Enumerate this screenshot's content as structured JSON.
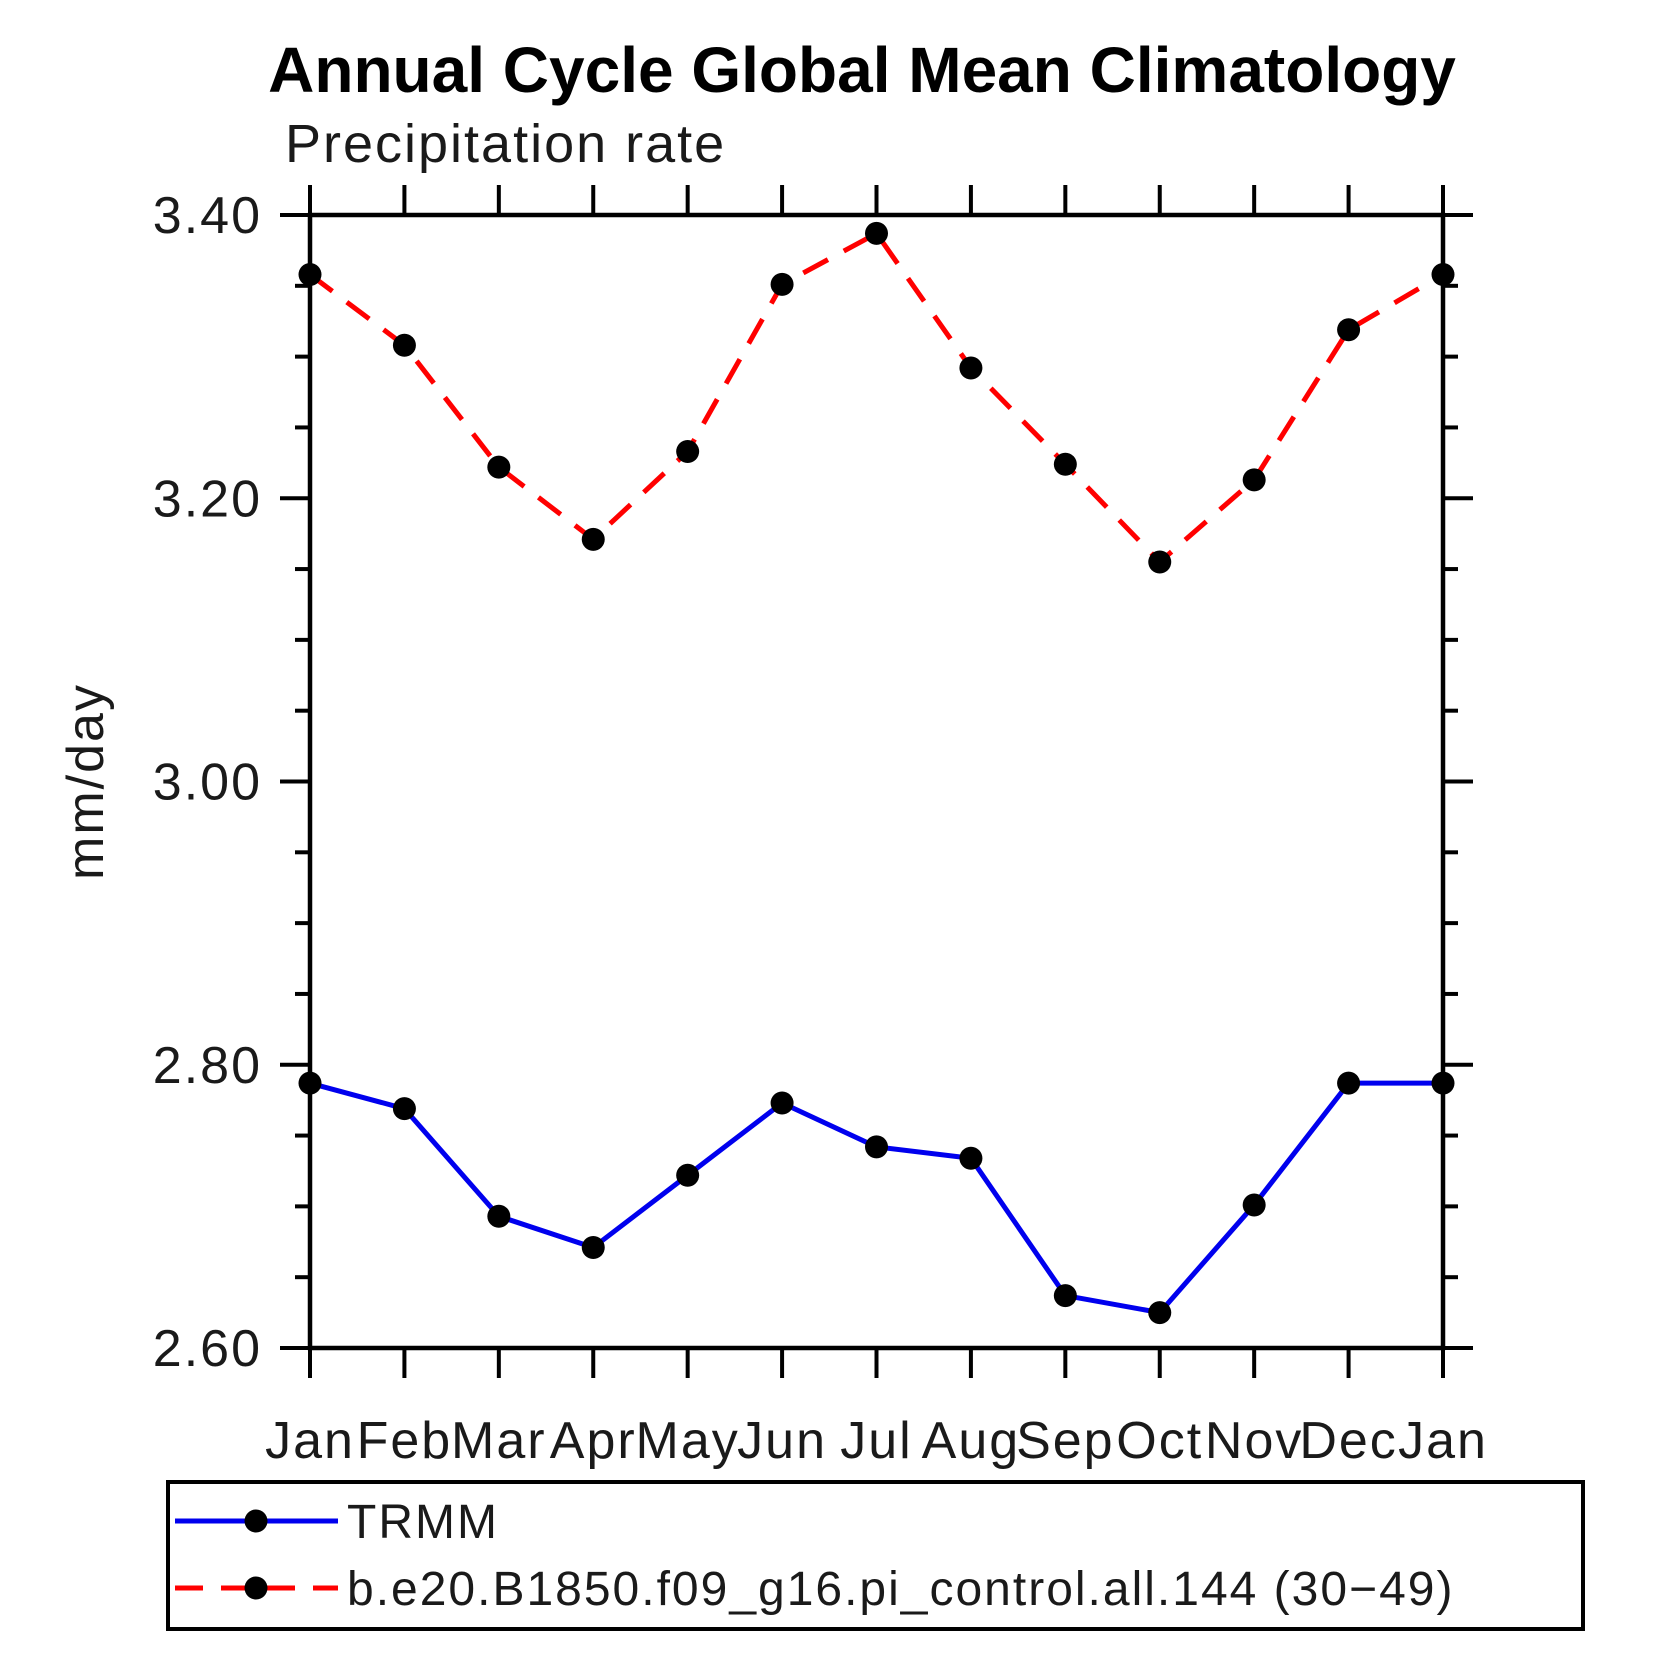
{
  "chart_data": {
    "type": "line",
    "title": "Annual Cycle Global Mean Climatology",
    "subtitle": "Precipitation rate",
    "ylabel": "mm/day",
    "xlabel": "",
    "categories": [
      "Jan",
      "Feb",
      "Mar",
      "Apr",
      "May",
      "Jun",
      "Jul",
      "Aug",
      "Sep",
      "Oct",
      "Nov",
      "Dec",
      "Jan"
    ],
    "series": [
      {
        "name": "TRMM",
        "line_style": "solid",
        "line_color": "#0000ee",
        "marker": "circle",
        "marker_color": "#000000",
        "values": [
          2.787,
          2.769,
          2.693,
          2.671,
          2.722,
          2.773,
          2.742,
          2.734,
          2.637,
          2.625,
          2.701,
          2.787,
          2.787
        ]
      },
      {
        "name": "b.e20.B1850.f09_g16.pi_control.all.144 (30−49)",
        "line_style": "dashed",
        "line_color": "#ff0000",
        "marker": "circle",
        "marker_color": "#000000",
        "values": [
          3.358,
          3.308,
          3.222,
          3.171,
          3.233,
          3.351,
          3.387,
          3.292,
          3.224,
          3.155,
          3.213,
          3.319,
          3.358
        ]
      }
    ],
    "ylim": [
      2.6,
      3.4
    ],
    "ytick_major": [
      2.6,
      2.8,
      3.0,
      3.2,
      3.4
    ],
    "ytick_labels": [
      "2.60",
      "2.80",
      "3.00",
      "3.20",
      "3.40"
    ],
    "ytick_minor_step": 0.05,
    "grid": false,
    "legend_position": "bottom-left",
    "axis_color": "#000000",
    "background_color": "#ffffff"
  }
}
